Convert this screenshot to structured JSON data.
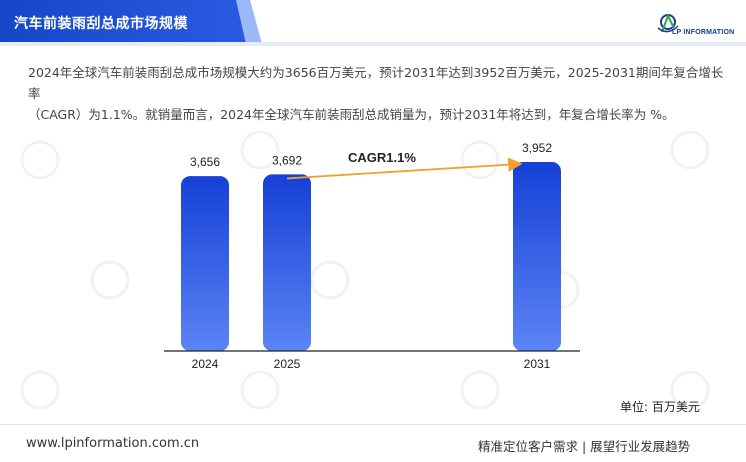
{
  "header": {
    "title": "汽车前装雨刮总成市场规模",
    "logo_text": "LP INFORMATION"
  },
  "description": {
    "line1": "2024年全球汽车前装雨刮总成市场规模大约为3656百万美元，预计2031年达到3952百万美元，2025-2031期间年复合增长率",
    "line2": "（CAGR）为1.1%。就销量而言，2024年全球汽车前装雨刮总成销量为，预计2031年将达到，年复合增长率为 %。"
  },
  "chart_data": {
    "type": "bar",
    "categories": [
      "2024",
      "2025",
      "2031"
    ],
    "values": [
      3656,
      3692,
      3952
    ],
    "value_labels": [
      "3,656",
      "3,692",
      "3,952"
    ],
    "title": "",
    "xlabel": "",
    "ylabel": "",
    "annotation": "CAGR1.1%",
    "unit": "单位: 百万美元",
    "grid": false,
    "bar_color_top": "#1540d6",
    "bar_color_bottom": "#5b84f5",
    "arrow_color": "#f0a12a"
  },
  "footer": {
    "website": "www.lpinformation.com.cn",
    "slogan": "精准定位客户需求 | 展望行业发展趋势"
  },
  "colors": {
    "header_blue": "#1646c8",
    "header_light": "#8fb0f5"
  }
}
